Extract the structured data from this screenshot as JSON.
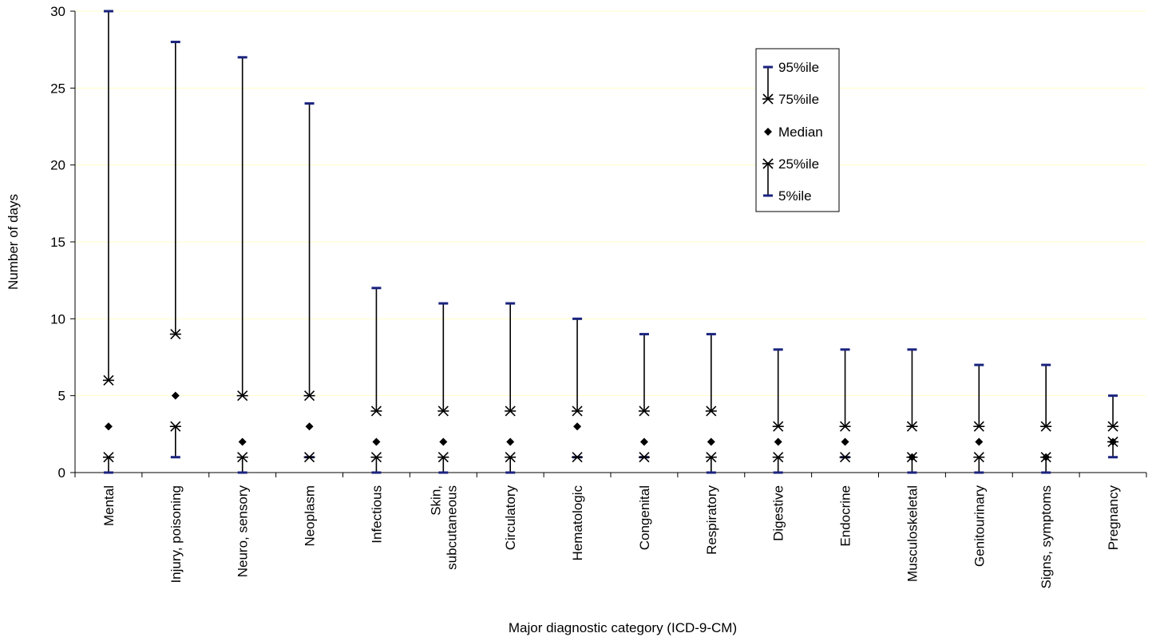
{
  "chart_data": {
    "type": "box",
    "title": "",
    "xlabel": "Major diagnostic category (ICD-9-CM)",
    "ylabel": "Number of days",
    "ylim": [
      0,
      30
    ],
    "yticks": [
      0,
      5,
      10,
      15,
      20,
      25,
      30
    ],
    "grid": "horizontal",
    "legend_position": "top-right",
    "legend": [
      "95%ile",
      "75%ile",
      "Median",
      "25%ile",
      "5%ile"
    ],
    "categories": [
      "Mental",
      "Injury, poisoning",
      "Neuro, sensory",
      "Neoplasm",
      "Infectious",
      "Skin,|subcutaneous",
      "Circulatory",
      "Hematologic",
      "Congenital",
      "Respiratory",
      "Digestive",
      "Endocrine",
      "Musculoskeletal",
      "Genitourinary",
      "Signs, symptoms",
      "Pregnancy"
    ],
    "series": [
      {
        "name": "95%ile",
        "values": [
          30,
          28,
          27,
          24,
          12,
          11,
          11,
          10,
          9,
          9,
          8,
          8,
          8,
          7,
          7,
          5
        ]
      },
      {
        "name": "75%ile",
        "values": [
          6,
          9,
          5,
          5,
          4,
          4,
          4,
          4,
          4,
          4,
          3,
          3,
          3,
          3,
          3,
          3
        ]
      },
      {
        "name": "Median",
        "values": [
          3,
          5,
          2,
          3,
          2,
          2,
          2,
          3,
          2,
          2,
          2,
          2,
          1,
          2,
          1,
          2
        ]
      },
      {
        "name": "25%ile",
        "values": [
          1,
          3,
          1,
          1,
          1,
          1,
          1,
          1,
          1,
          1,
          1,
          1,
          1,
          1,
          1,
          2
        ]
      },
      {
        "name": "5%ile",
        "values": [
          0,
          1,
          0,
          1,
          0,
          0,
          0,
          1,
          1,
          0,
          0,
          1,
          0,
          0,
          0,
          1
        ]
      }
    ],
    "colors": {
      "whisker_cap": "#1a237e",
      "line": "#000000",
      "grid": "#ffffc8"
    }
  }
}
